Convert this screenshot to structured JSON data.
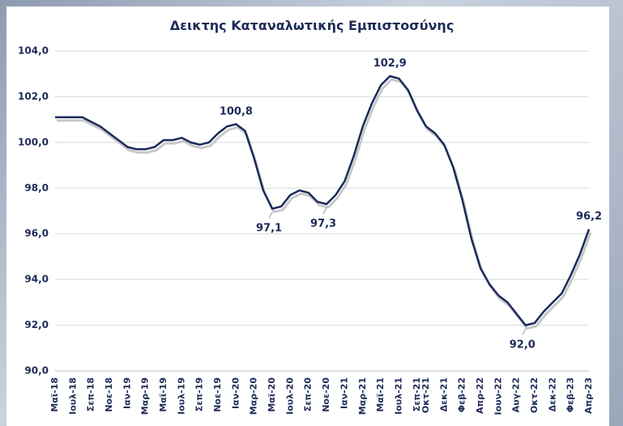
{
  "chart_data": {
    "type": "line",
    "title": "Δεικτης Καταναλωτικής Εμπιστοσύνης",
    "categories": [
      "Μαϊ-18",
      null,
      "Ιουλ-18",
      null,
      "Σεπ-18",
      null,
      "Νοε-18",
      null,
      "Ιαν-19",
      null,
      "Μαρ-19",
      null,
      "Μαϊ-19",
      null,
      "Ιουλ-19",
      null,
      "Σεπ-19",
      null,
      "Νοε-19",
      null,
      "Ιαν-20",
      null,
      "Μαρ-20",
      null,
      "Μαϊ-20",
      null,
      "Ιουλ-20",
      null,
      "Σεπ-20",
      null,
      "Νοε-20",
      null,
      "Ιαν-21",
      null,
      "Μαρ-21",
      null,
      "Μαϊ-21",
      null,
      "Ιουλ-21",
      null,
      "Σεπ-21",
      "Οκτ-21",
      null,
      "Δεκ-21",
      null,
      "Φεβ-22",
      null,
      "Απρ-22",
      null,
      "Ιουν-22",
      null,
      "Αυγ-22",
      null,
      "Οκτ-22",
      null,
      "Δεκ-22",
      null,
      "Φεβ-23",
      null,
      "Απρ-23"
    ],
    "series": [
      {
        "color": "#1b2a5c",
        "values": [
          101.1,
          101.1,
          101.1,
          101.1,
          100.9,
          100.7,
          100.4,
          100.1,
          99.8,
          99.7,
          99.7,
          99.8,
          100.1,
          100.1,
          100.2,
          100.0,
          99.9,
          100.0,
          100.4,
          100.7,
          100.8,
          100.5,
          99.3,
          97.9,
          97.1,
          97.2,
          97.7,
          97.9,
          97.8,
          97.4,
          97.3,
          97.7,
          98.3,
          99.4,
          100.7,
          101.7,
          102.5,
          102.9,
          102.8,
          102.3,
          101.4,
          100.7,
          100.4,
          99.9,
          98.9,
          97.5,
          95.8,
          94.5,
          93.8,
          93.3,
          93.0,
          92.5,
          92.0,
          92.1,
          92.6,
          93.0,
          93.4,
          94.2,
          95.1,
          96.2
        ],
        "value_labels": [
          null,
          null,
          null,
          null,
          null,
          null,
          null,
          null,
          null,
          null,
          null,
          null,
          null,
          null,
          null,
          null,
          null,
          null,
          null,
          null,
          "100,8",
          null,
          null,
          null,
          "97,1",
          null,
          null,
          null,
          null,
          null,
          "97,3",
          null,
          null,
          null,
          null,
          null,
          null,
          "102,9",
          null,
          null,
          null,
          null,
          null,
          null,
          null,
          null,
          null,
          null,
          null,
          null,
          null,
          null,
          "92,0",
          null,
          null,
          null,
          null,
          null,
          null,
          "96,2"
        ]
      }
    ],
    "ylim": [
      90,
      104
    ],
    "yticks": [
      {
        "value": 90,
        "label": "90,0"
      },
      {
        "value": 92,
        "label": "92,0"
      },
      {
        "value": 94,
        "label": "94,0"
      },
      {
        "value": 96,
        "label": "96,0"
      },
      {
        "value": 98,
        "label": "98,0"
      },
      {
        "value": 100,
        "label": "100,0"
      },
      {
        "value": 102,
        "label": "102,0"
      },
      {
        "value": 104,
        "label": "104,0"
      }
    ],
    "grid": true
  }
}
